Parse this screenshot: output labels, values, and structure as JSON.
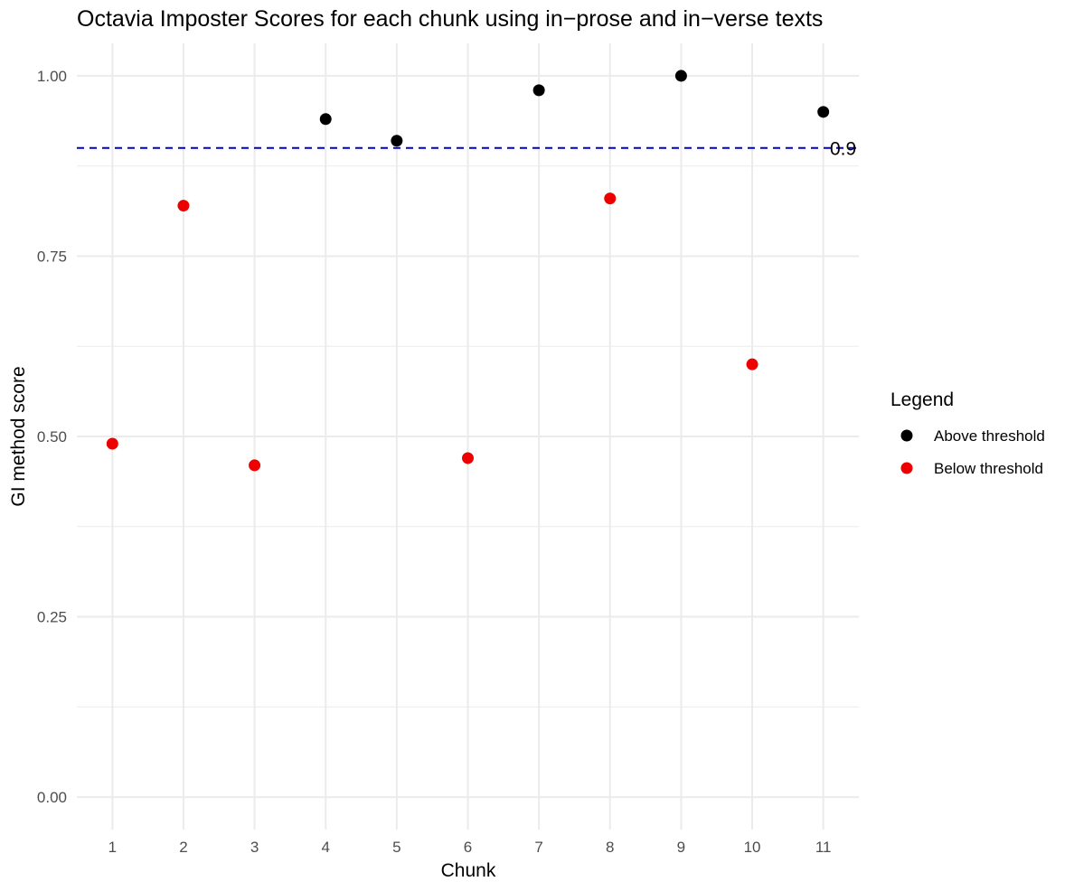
{
  "chart_data": {
    "type": "scatter",
    "title": "Octavia Imposter Scores for each chunk using in−prose and in−verse texts",
    "xlabel": "Chunk",
    "ylabel": "GI method score",
    "x": [
      1,
      2,
      3,
      4,
      5,
      6,
      7,
      8,
      9,
      10,
      11
    ],
    "xlim": [
      0.5,
      11.5
    ],
    "ylim": [
      -0.045,
      1.045
    ],
    "x_ticks": [
      "1",
      "2",
      "3",
      "4",
      "5",
      "6",
      "7",
      "8",
      "9",
      "10",
      "11"
    ],
    "y_ticks": [
      {
        "value": 0.0,
        "label": "0.00"
      },
      {
        "value": 0.25,
        "label": "0.25"
      },
      {
        "value": 0.5,
        "label": "0.50"
      },
      {
        "value": 0.75,
        "label": "0.75"
      },
      {
        "value": 1.0,
        "label": "1.00"
      }
    ],
    "y_minor_ticks": [
      0.125,
      0.375,
      0.625,
      0.875
    ],
    "grid": true,
    "points": [
      {
        "x": 1,
        "y": 0.49,
        "group": "Below threshold"
      },
      {
        "x": 2,
        "y": 0.82,
        "group": "Below threshold"
      },
      {
        "x": 3,
        "y": 0.46,
        "group": "Below threshold"
      },
      {
        "x": 4,
        "y": 0.94,
        "group": "Above threshold"
      },
      {
        "x": 5,
        "y": 0.91,
        "group": "Above threshold"
      },
      {
        "x": 6,
        "y": 0.47,
        "group": "Below threshold"
      },
      {
        "x": 7,
        "y": 0.98,
        "group": "Above threshold"
      },
      {
        "x": 8,
        "y": 0.83,
        "group": "Below threshold"
      },
      {
        "x": 9,
        "y": 1.0,
        "group": "Above threshold"
      },
      {
        "x": 10,
        "y": 0.6,
        "group": "Below threshold"
      },
      {
        "x": 11,
        "y": 0.95,
        "group": "Above threshold"
      }
    ],
    "threshold": {
      "value": 0.9,
      "label": "0.9",
      "color": "#0000cd",
      "style": "dashed"
    },
    "legend": {
      "title": "Legend",
      "placement": "right",
      "entries": [
        {
          "label": "Above threshold",
          "color": "#000000"
        },
        {
          "label": "Below threshold",
          "color": "#ee0000"
        }
      ]
    },
    "colors": {
      "grid": "#ebebeb",
      "tick_text": "#4d4d4d"
    }
  }
}
